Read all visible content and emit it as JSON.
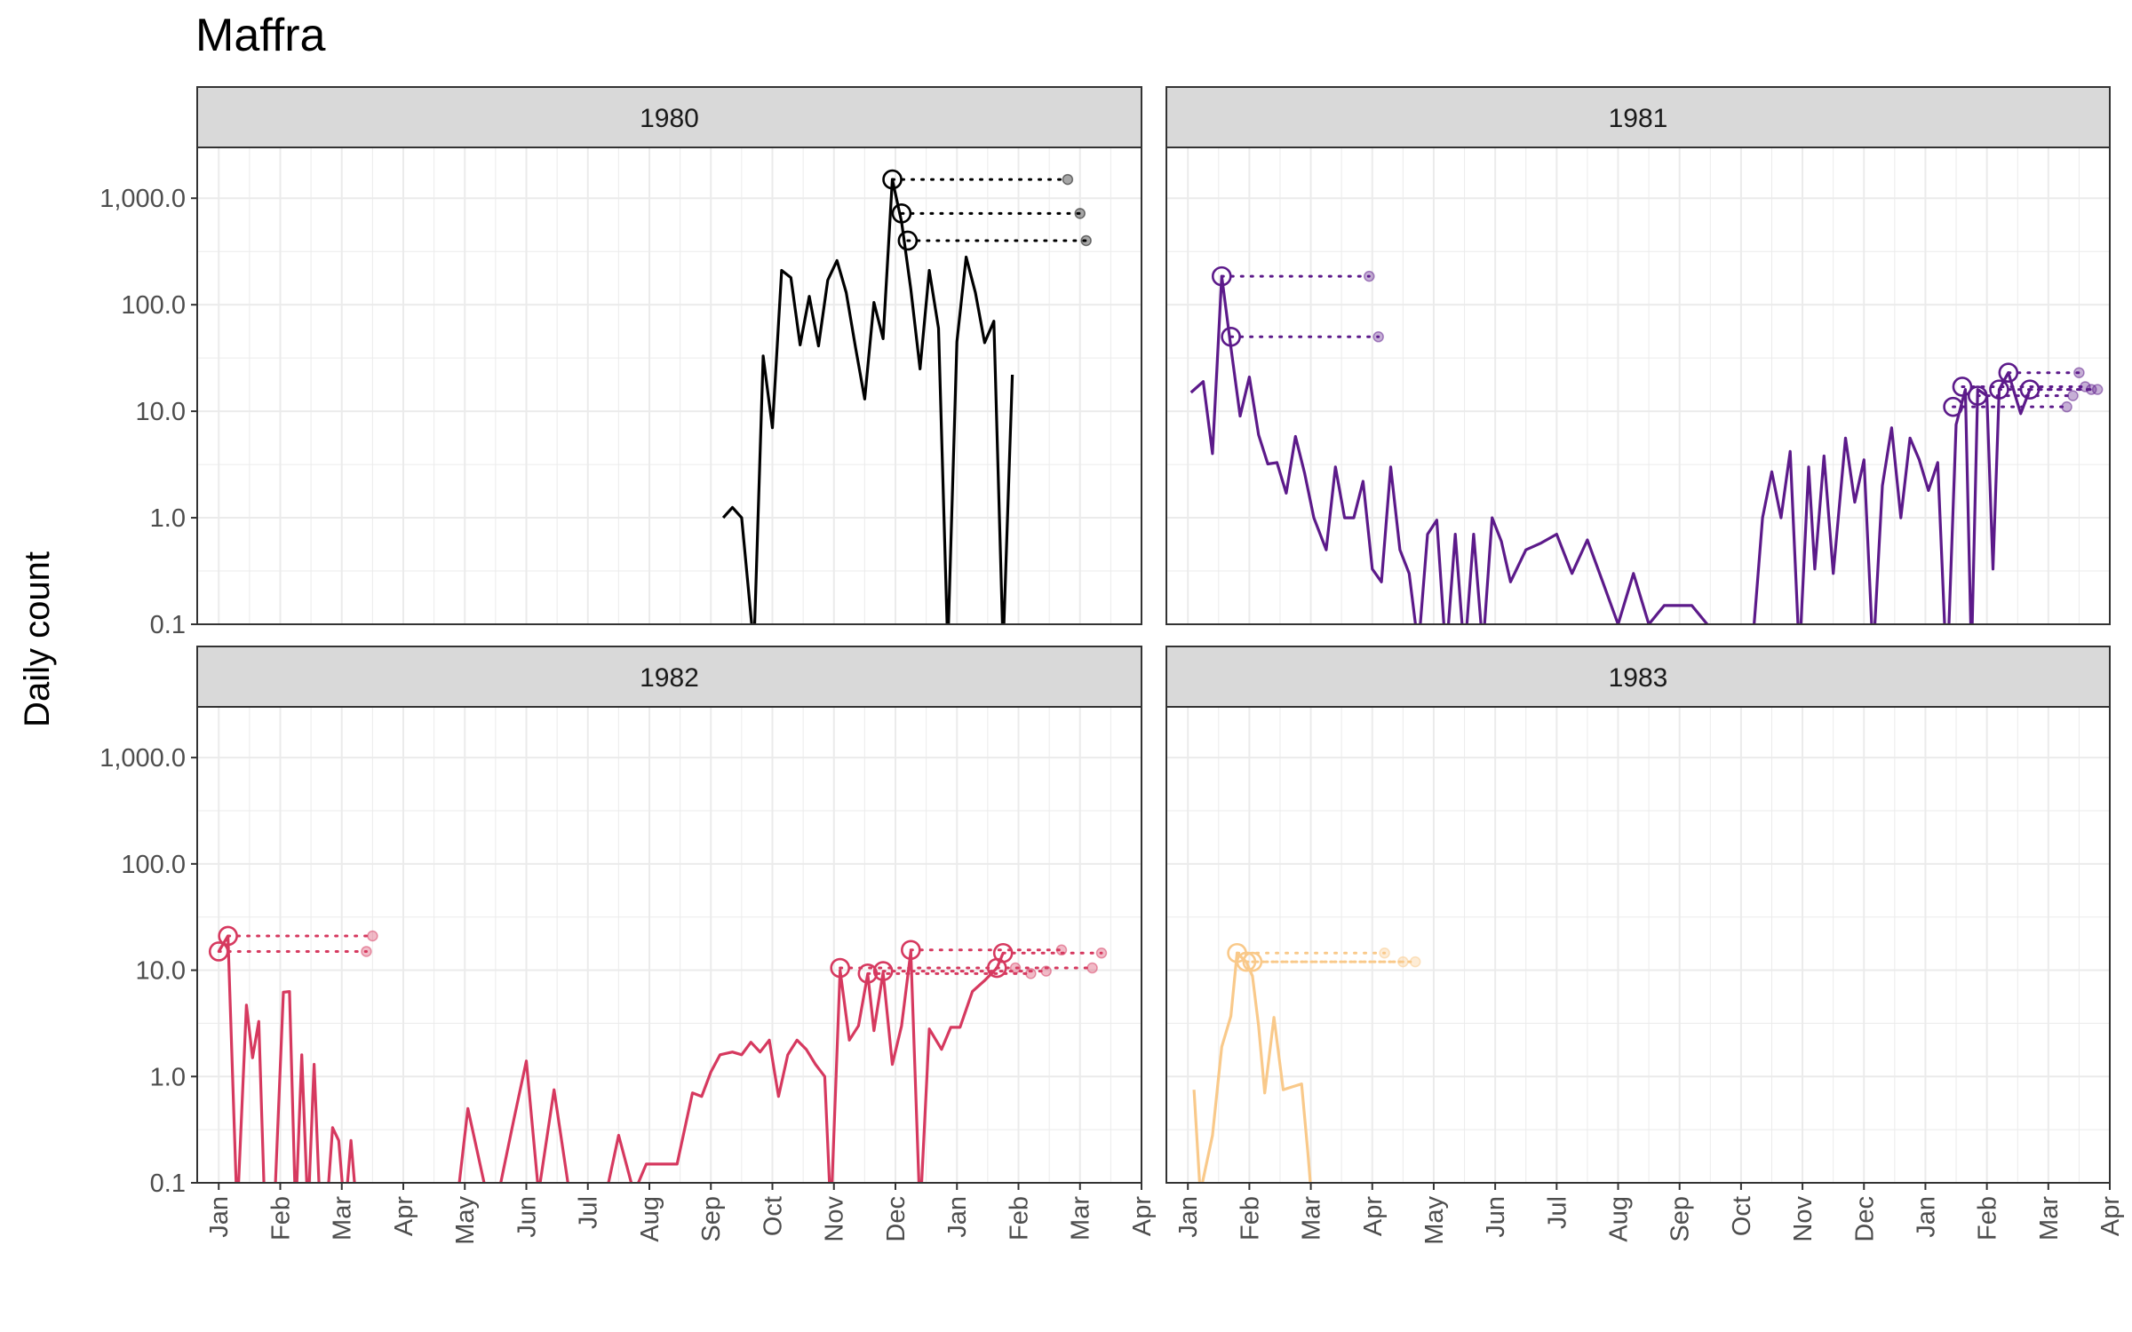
{
  "chart_data": {
    "type": "line",
    "title": "Maffra",
    "ylabel": "Daily count",
    "xlabel": "",
    "y_scale": "log10",
    "ylim": [
      0.1,
      3000
    ],
    "y_ticks": [
      0.1,
      1,
      10,
      100,
      1000
    ],
    "y_tick_labels": [
      "0.1",
      "1.0",
      "10.0",
      "100.0",
      "1,000.0"
    ],
    "x_tick_labels": [
      "Jan",
      "Feb",
      "Mar",
      "Apr",
      "May",
      "Jun",
      "Jul",
      "Aug",
      "Sep",
      "Oct",
      "Nov",
      "Dec",
      "Jan",
      "Feb",
      "Mar",
      "Apr"
    ],
    "x_unit": "months since Jan 1 of panel year",
    "grid": true,
    "facets": [
      {
        "label": "1980",
        "color": "#000000",
        "series": [
          [
            8.2,
            1.0
          ],
          [
            8.35,
            1.25
          ],
          [
            8.5,
            1.0
          ],
          [
            8.7,
            0.06
          ],
          [
            8.85,
            33
          ],
          [
            9.0,
            7
          ],
          [
            9.15,
            210
          ],
          [
            9.3,
            180
          ],
          [
            9.45,
            42
          ],
          [
            9.6,
            120
          ],
          [
            9.75,
            41
          ],
          [
            9.9,
            170
          ],
          [
            10.05,
            260
          ],
          [
            10.2,
            130
          ],
          [
            10.35,
            40
          ],
          [
            10.5,
            13
          ],
          [
            10.65,
            105
          ],
          [
            10.8,
            48
          ],
          [
            10.95,
            1500
          ],
          [
            11.1,
            600
          ],
          [
            11.25,
            140
          ],
          [
            11.4,
            25
          ],
          [
            11.55,
            210
          ],
          [
            11.7,
            60
          ],
          [
            11.85,
            0.06
          ],
          [
            12.0,
            45
          ],
          [
            12.15,
            280
          ],
          [
            12.3,
            130
          ],
          [
            12.45,
            44
          ],
          [
            12.6,
            70
          ],
          [
            12.75,
            0.06
          ],
          [
            12.9,
            22
          ]
        ],
        "peaks": [
          {
            "x": 10.95,
            "y": 1500,
            "x2": 13.8
          },
          {
            "x": 11.1,
            "y": 720,
            "x2": 14.0
          },
          {
            "x": 11.2,
            "y": 400,
            "x2": 14.1
          }
        ]
      },
      {
        "label": "1981",
        "color": "#5c1a8a",
        "series": [
          [
            0.05,
            15
          ],
          [
            0.25,
            19
          ],
          [
            0.4,
            4
          ],
          [
            0.55,
            185
          ],
          [
            0.7,
            40
          ],
          [
            0.85,
            9
          ],
          [
            1.0,
            21
          ],
          [
            1.15,
            6
          ],
          [
            1.3,
            3.2
          ],
          [
            1.45,
            3.3
          ],
          [
            1.6,
            1.7
          ],
          [
            1.75,
            5.8
          ],
          [
            1.9,
            2.6
          ],
          [
            2.05,
            1.0
          ],
          [
            2.25,
            0.5
          ],
          [
            2.4,
            3
          ],
          [
            2.55,
            1.0
          ],
          [
            2.7,
            1.0
          ],
          [
            2.85,
            2.2
          ],
          [
            3.0,
            0.33
          ],
          [
            3.15,
            0.25
          ],
          [
            3.3,
            3.0
          ],
          [
            3.45,
            0.5
          ],
          [
            3.6,
            0.3
          ],
          [
            3.75,
            0.06
          ],
          [
            3.9,
            0.7
          ],
          [
            4.05,
            0.95
          ],
          [
            4.2,
            0.05
          ],
          [
            4.35,
            0.7
          ],
          [
            4.5,
            0.05
          ],
          [
            4.65,
            0.7
          ],
          [
            4.8,
            0.06
          ],
          [
            4.95,
            1.0
          ],
          [
            5.1,
            0.6
          ],
          [
            5.25,
            0.25
          ],
          [
            5.5,
            0.5
          ],
          [
            5.75,
            0.58
          ],
          [
            6.0,
            0.7
          ],
          [
            6.25,
            0.3
          ],
          [
            6.5,
            0.62
          ],
          [
            6.75,
            0.25
          ],
          [
            7.0,
            0.1
          ],
          [
            7.25,
            0.3
          ],
          [
            7.5,
            0.1
          ],
          [
            7.75,
            0.15
          ],
          [
            8.0,
            0.15
          ],
          [
            8.2,
            0.15
          ],
          [
            8.45,
            0.1
          ],
          [
            8.7,
            0.08
          ],
          [
            9.0,
            0.08
          ],
          [
            9.2,
            0.08
          ],
          [
            9.35,
            1.0
          ],
          [
            9.5,
            2.7
          ],
          [
            9.65,
            1.0
          ],
          [
            9.8,
            4.2
          ],
          [
            9.95,
            0.05
          ],
          [
            10.1,
            3.0
          ],
          [
            10.2,
            0.33
          ],
          [
            10.35,
            3.8
          ],
          [
            10.5,
            0.3
          ],
          [
            10.7,
            5.6
          ],
          [
            10.85,
            1.4
          ],
          [
            11.0,
            3.5
          ],
          [
            11.15,
            0.05
          ],
          [
            11.3,
            2.0
          ],
          [
            11.45,
            7.0
          ],
          [
            11.6,
            1.0
          ],
          [
            11.75,
            5.6
          ],
          [
            11.9,
            3.5
          ],
          [
            12.05,
            1.8
          ],
          [
            12.2,
            3.3
          ],
          [
            12.35,
            0.03
          ],
          [
            12.5,
            7.5
          ],
          [
            12.65,
            16
          ],
          [
            12.75,
            0.05
          ],
          [
            12.85,
            16
          ],
          [
            13.0,
            14
          ],
          [
            13.1,
            0.33
          ],
          [
            13.2,
            16
          ],
          [
            13.35,
            23
          ],
          [
            13.55,
            9.5
          ],
          [
            13.7,
            16
          ]
        ],
        "peaks": [
          {
            "x": 0.55,
            "y": 185,
            "x2": 2.95
          },
          {
            "x": 0.7,
            "y": 50,
            "x2": 3.1
          },
          {
            "x": 12.45,
            "y": 11,
            "x2": 14.3
          },
          {
            "x": 12.6,
            "y": 17,
            "x2": 14.6
          },
          {
            "x": 12.85,
            "y": 14,
            "x2": 14.4
          },
          {
            "x": 13.2,
            "y": 16,
            "x2": 14.7
          },
          {
            "x": 13.35,
            "y": 23,
            "x2": 14.5
          },
          {
            "x": 13.7,
            "y": 16,
            "x2": 14.8
          }
        ]
      },
      {
        "label": "1982",
        "color": "#d6395f",
        "series": [
          [
            0.0,
            15
          ],
          [
            0.15,
            21
          ],
          [
            0.3,
            0.05
          ],
          [
            0.45,
            4.7
          ],
          [
            0.55,
            1.5
          ],
          [
            0.65,
            3.3
          ],
          [
            0.75,
            0.05
          ],
          [
            0.9,
            0.05
          ],
          [
            1.05,
            6.2
          ],
          [
            1.15,
            6.3
          ],
          [
            1.25,
            0.05
          ],
          [
            1.35,
            1.6
          ],
          [
            1.45,
            0.05
          ],
          [
            1.55,
            1.3
          ],
          [
            1.65,
            0.05
          ],
          [
            1.75,
            0.05
          ],
          [
            1.85,
            0.33
          ],
          [
            1.95,
            0.25
          ],
          [
            2.05,
            0.05
          ],
          [
            2.15,
            0.25
          ],
          [
            2.25,
            0.05
          ],
          [
            3.85,
            0.05
          ],
          [
            4.05,
            0.5
          ],
          [
            4.2,
            0.2
          ],
          [
            4.35,
            0.08
          ],
          [
            4.55,
            0.08
          ],
          [
            4.8,
            0.4
          ],
          [
            5.0,
            1.4
          ],
          [
            5.2,
            0.08
          ],
          [
            5.45,
            0.75
          ],
          [
            5.7,
            0.08
          ],
          [
            6.0,
            0.08
          ],
          [
            6.3,
            0.08
          ],
          [
            6.5,
            0.28
          ],
          [
            6.75,
            0.08
          ],
          [
            6.95,
            0.15
          ],
          [
            7.2,
            0.15
          ],
          [
            7.45,
            0.15
          ],
          [
            7.7,
            0.7
          ],
          [
            7.85,
            0.65
          ],
          [
            8.0,
            1.1
          ],
          [
            8.15,
            1.6
          ],
          [
            8.35,
            1.7
          ],
          [
            8.5,
            1.6
          ],
          [
            8.65,
            2.1
          ],
          [
            8.8,
            1.7
          ],
          [
            8.95,
            2.2
          ],
          [
            9.1,
            0.65
          ],
          [
            9.25,
            1.6
          ],
          [
            9.4,
            2.2
          ],
          [
            9.55,
            1.8
          ],
          [
            9.7,
            1.3
          ],
          [
            9.85,
            1.0
          ],
          [
            9.95,
            0.05
          ],
          [
            10.1,
            10
          ],
          [
            10.25,
            2.2
          ],
          [
            10.4,
            3.0
          ],
          [
            10.55,
            9.2
          ],
          [
            10.65,
            2.7
          ],
          [
            10.8,
            9.5
          ],
          [
            10.95,
            1.3
          ],
          [
            11.1,
            3
          ],
          [
            11.25,
            15
          ],
          [
            11.4,
            0.05
          ],
          [
            11.55,
            2.8
          ],
          [
            11.75,
            1.8
          ],
          [
            11.9,
            2.9
          ],
          [
            12.05,
            2.9
          ],
          [
            12.25,
            6.3
          ],
          [
            12.45,
            8
          ],
          [
            12.65,
            10.5
          ],
          [
            12.75,
            14.5
          ]
        ],
        "peaks": [
          {
            "x": 0.0,
            "y": 15,
            "x2": 2.4
          },
          {
            "x": 0.15,
            "y": 21,
            "x2": 2.5
          },
          {
            "x": 10.1,
            "y": 10.5,
            "x2": 12.95
          },
          {
            "x": 10.55,
            "y": 9.3,
            "x2": 13.2
          },
          {
            "x": 10.8,
            "y": 9.8,
            "x2": 13.45
          },
          {
            "x": 11.25,
            "y": 15.5,
            "x2": 13.7
          },
          {
            "x": 12.65,
            "y": 10.5,
            "x2": 14.2
          },
          {
            "x": 12.75,
            "y": 14.5,
            "x2": 14.35
          }
        ]
      },
      {
        "label": "1983",
        "color": "#f9c98a",
        "series": [
          [
            0.1,
            0.75
          ],
          [
            0.2,
            0.08
          ],
          [
            0.4,
            0.28
          ],
          [
            0.55,
            1.9
          ],
          [
            0.7,
            3.7
          ],
          [
            0.8,
            14.5
          ],
          [
            0.95,
            12
          ],
          [
            1.05,
            8.8
          ],
          [
            1.15,
            3
          ],
          [
            1.25,
            0.7
          ],
          [
            1.4,
            3.6
          ],
          [
            1.55,
            0.75
          ],
          [
            1.7,
            0.8
          ],
          [
            1.85,
            0.85
          ],
          [
            1.95,
            0.2
          ],
          [
            2.05,
            0.04
          ]
        ],
        "peaks": [
          {
            "x": 0.8,
            "y": 14.5,
            "x2": 3.2
          },
          {
            "x": 0.95,
            "y": 12,
            "x2": 3.5
          },
          {
            "x": 1.05,
            "y": 12,
            "x2": 3.7
          }
        ]
      }
    ]
  }
}
